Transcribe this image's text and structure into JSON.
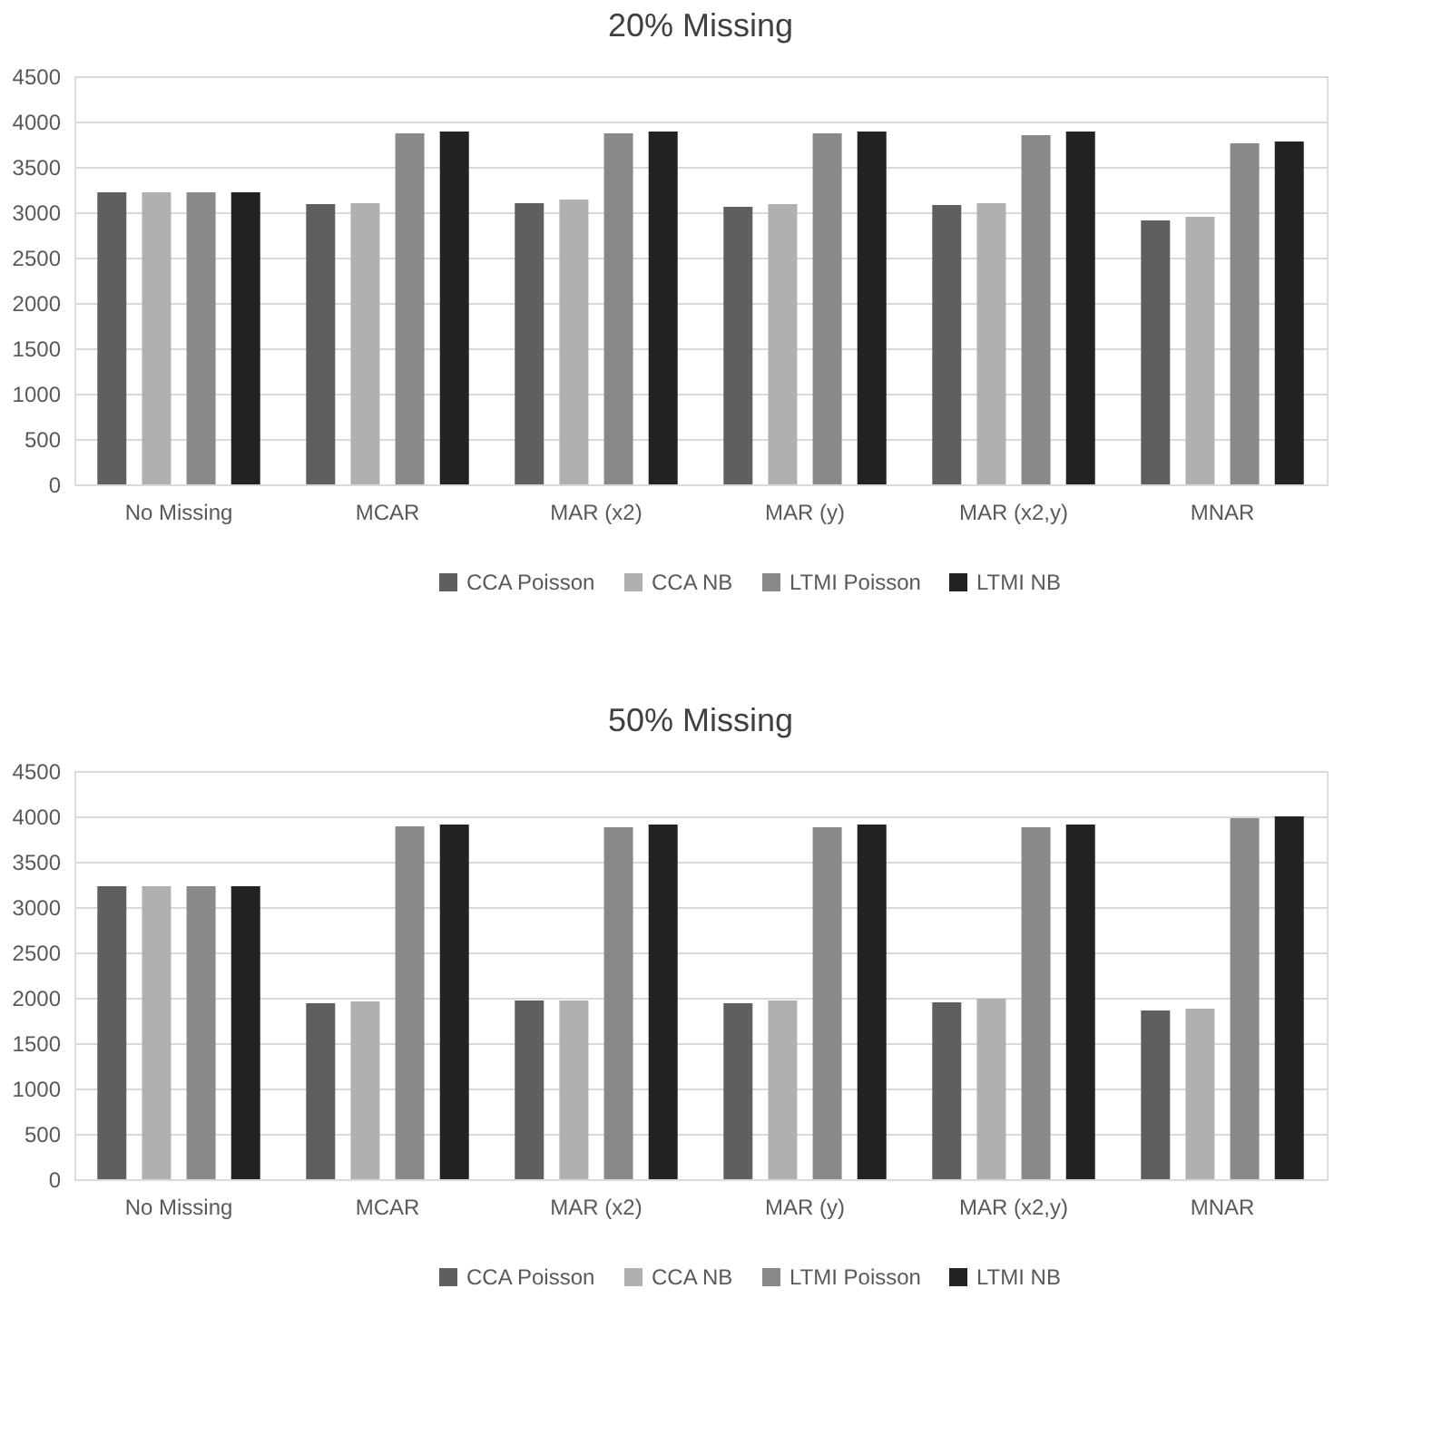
{
  "chart_data": [
    {
      "type": "bar",
      "title": "20% Missing",
      "categories": [
        "No Missing",
        "MCAR",
        "MAR (x2)",
        "MAR (y)",
        "MAR (x2,y)",
        "MNAR"
      ],
      "series": [
        {
          "name": "CCA Poisson",
          "color": "#5f5f5f",
          "values": [
            3220,
            3090,
            3100,
            3060,
            3080,
            2910
          ]
        },
        {
          "name": "CCA NB",
          "color": "#b0b0b0",
          "values": [
            3220,
            3100,
            3140,
            3090,
            3100,
            2950
          ]
        },
        {
          "name": "LTMI Poisson",
          "color": "#898989",
          "values": [
            3220,
            3870,
            3870,
            3870,
            3850,
            3760
          ]
        },
        {
          "name": "LTMI NB",
          "color": "#222222",
          "values": [
            3220,
            3890,
            3890,
            3890,
            3890,
            3780
          ]
        }
      ],
      "ylim": [
        0,
        4500
      ],
      "yticks": [
        0,
        500,
        1000,
        1500,
        2000,
        2500,
        3000,
        3500,
        4000,
        4500
      ],
      "grid": "y",
      "legend": "bottom"
    },
    {
      "type": "bar",
      "title": "50% Missing",
      "categories": [
        "No Missing",
        "MCAR",
        "MAR (x2)",
        "MAR (y)",
        "MAR (x2,y)",
        "MNAR"
      ],
      "series": [
        {
          "name": "CCA Poisson",
          "color": "#5f5f5f",
          "values": [
            3230,
            1940,
            1970,
            1940,
            1950,
            1860
          ]
        },
        {
          "name": "CCA NB",
          "color": "#b0b0b0",
          "values": [
            3230,
            1960,
            1970,
            1970,
            1990,
            1880
          ]
        },
        {
          "name": "LTMI Poisson",
          "color": "#898989",
          "values": [
            3230,
            3890,
            3880,
            3880,
            3880,
            3980
          ]
        },
        {
          "name": "LTMI NB",
          "color": "#222222",
          "values": [
            3230,
            3910,
            3910,
            3910,
            3910,
            4000
          ]
        }
      ],
      "ylim": [
        0,
        4500
      ],
      "yticks": [
        0,
        500,
        1000,
        1500,
        2000,
        2500,
        3000,
        3500,
        4000,
        4500
      ],
      "grid": "y",
      "legend": "bottom"
    }
  ]
}
